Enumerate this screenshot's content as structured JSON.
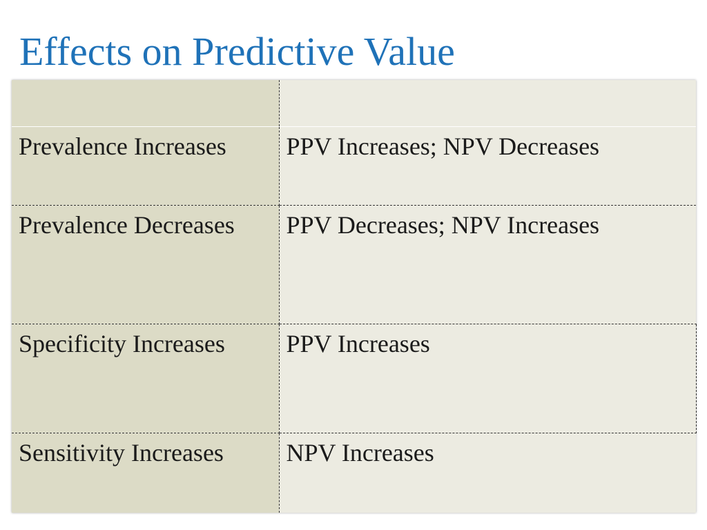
{
  "slide": {
    "title": "Effects on Predictive Value"
  },
  "table": {
    "header": [
      "",
      ""
    ],
    "rows": [
      {
        "condition": "Prevalence Increases",
        "effect": "PPV Increases; NPV Decreases"
      },
      {
        "condition": "Prevalence Decreases",
        "effect": "PPV Decreases; NPV Increases"
      },
      {
        "condition": "Specificity Increases",
        "effect": "PPV Increases"
      },
      {
        "condition": "Sensitivity Increases",
        "effect": "NPV Increases"
      }
    ]
  },
  "colors": {
    "title": "#1f72b8",
    "left_column_fill": "#dcdbc6",
    "right_column_fill": "#ecebe1",
    "text": "#1a1a1a"
  }
}
